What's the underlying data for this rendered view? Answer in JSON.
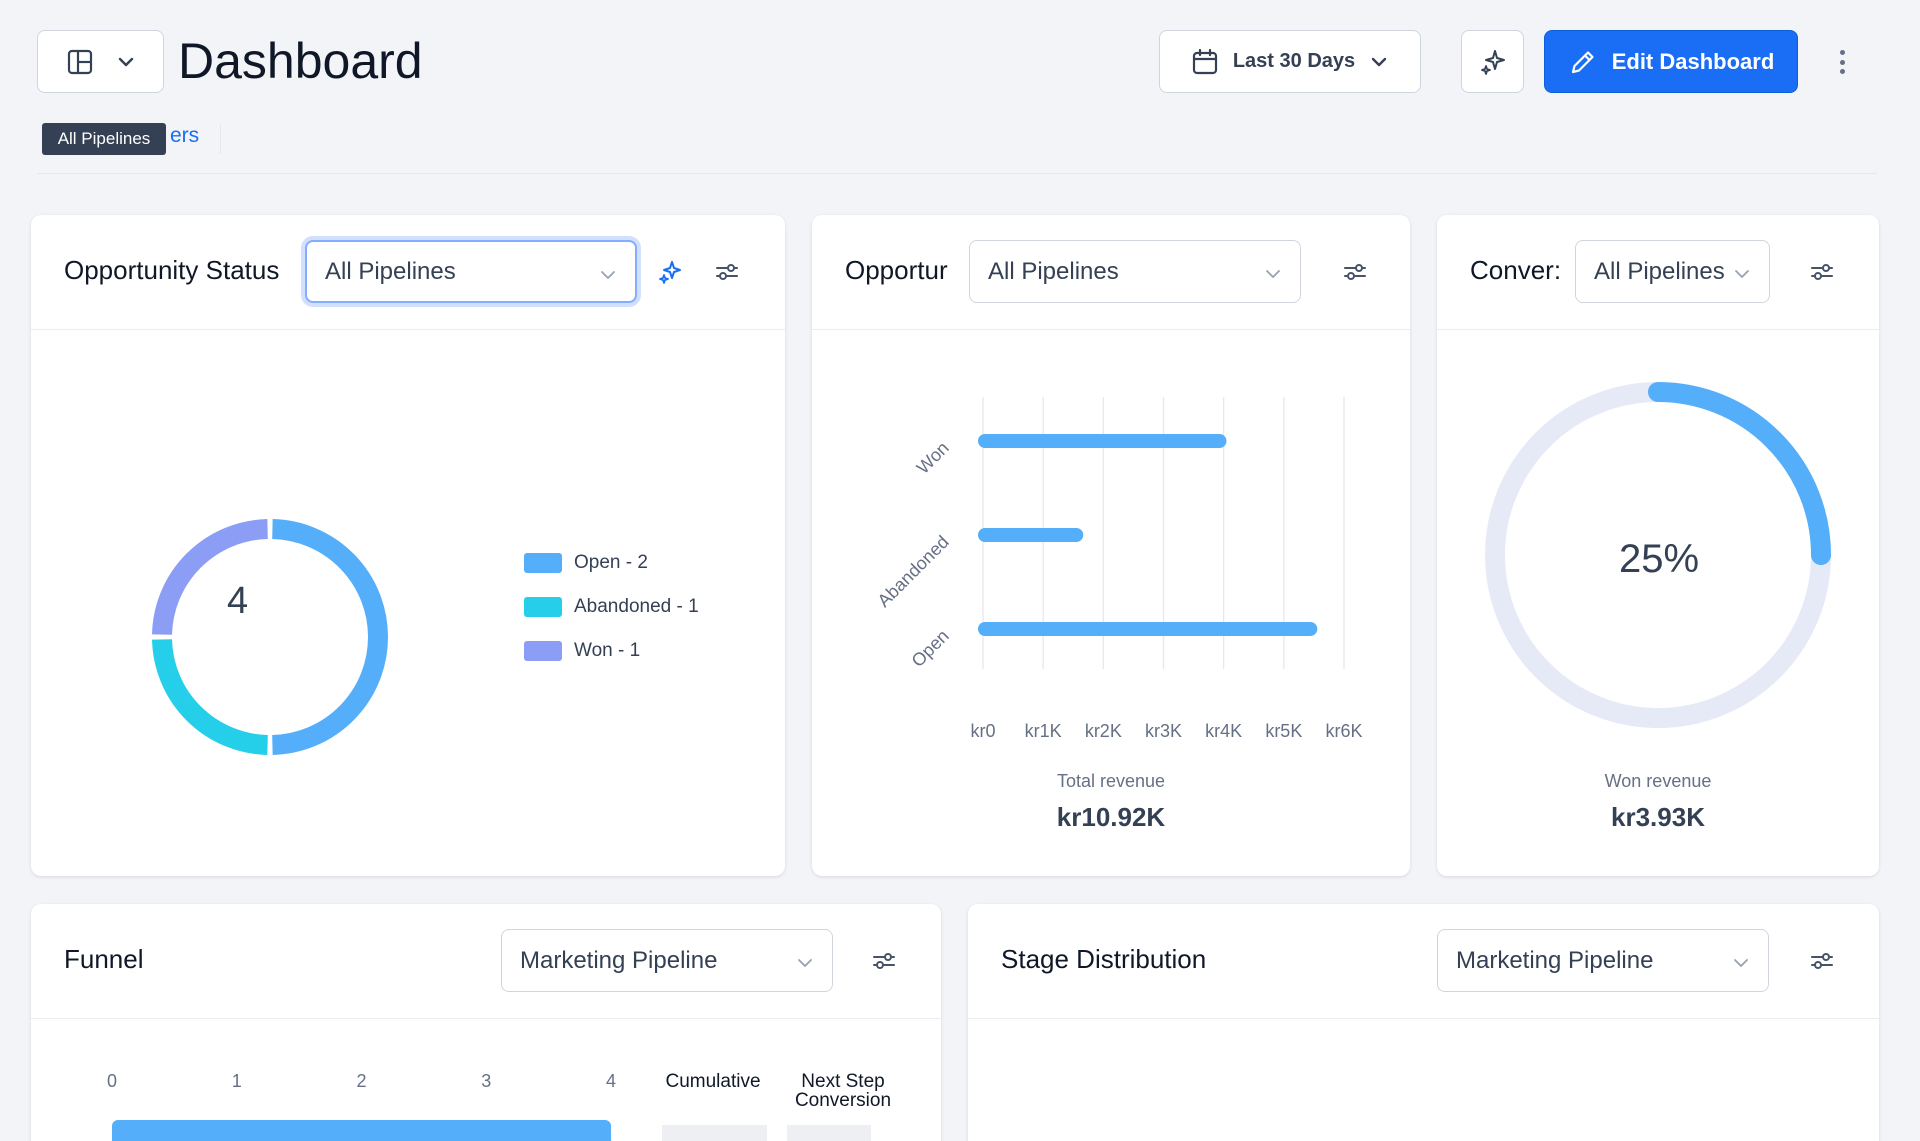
{
  "header": {
    "title": "Dashboard",
    "date_range": "Last 30 Days",
    "edit_label": "Edit Dashboard",
    "filters_link": "ers",
    "tooltip": "All Pipelines"
  },
  "colors": {
    "accent": "#1a6ef5",
    "open": "#54aef9",
    "abandoned": "#25cfe9",
    "won": "#8b9df5"
  },
  "cards": {
    "opportunity_status": {
      "title": "Opportunity Status",
      "pipeline": "All Pipelines",
      "center_value": "4",
      "legend": [
        {
          "label": "Open - 2",
          "color": "#54aef9"
        },
        {
          "label": "Abandoned - 1",
          "color": "#25cfe9"
        },
        {
          "label": "Won - 1",
          "color": "#8b9df5"
        }
      ]
    },
    "opportunity_value": {
      "title": "Opportur",
      "pipeline": "All Pipelines",
      "caption": "Total revenue",
      "total": "kr10.92K"
    },
    "conversion": {
      "title": "Conver:",
      "pipeline": "All Pipelines",
      "percent": "25%",
      "caption": "Won revenue",
      "value": "kr3.93K"
    },
    "funnel": {
      "title": "Funnel",
      "pipeline": "Marketing Pipeline",
      "col_cumulative": "Cumulative",
      "col_next_line1": "Next Step",
      "col_next_line2": "Conversion"
    },
    "stage_distribution": {
      "title": "Stage Distribution",
      "pipeline": "Marketing Pipeline"
    }
  },
  "chart_data": [
    {
      "type": "pie",
      "donut": true,
      "categories": [
        "Open",
        "Abandoned",
        "Won"
      ],
      "values": [
        2,
        1,
        1
      ],
      "colors": [
        "#54aef9",
        "#25cfe9",
        "#8b9df5"
      ]
    },
    {
      "type": "bar",
      "orientation": "horizontal",
      "categories": [
        "Won",
        "Abandoned",
        "Open"
      ],
      "values": [
        3930,
        1550,
        5440
      ],
      "xticks": [
        "kr0",
        "kr1K",
        "kr2K",
        "kr3K",
        "kr4K",
        "kr5K",
        "kr6K"
      ],
      "xlim": [
        0,
        6000
      ],
      "grid": true,
      "color": "#54aef9"
    },
    {
      "type": "pie",
      "gauge": true,
      "values": [
        25
      ],
      "max": 100,
      "color": "#54aef9",
      "track_color": "#e5eaf6"
    },
    {
      "type": "bar",
      "orientation": "horizontal",
      "xticks": [
        "0",
        "1",
        "2",
        "3",
        "4"
      ],
      "xlim": [
        0,
        4
      ],
      "values": [
        4
      ],
      "color": "#54aef9"
    }
  ]
}
